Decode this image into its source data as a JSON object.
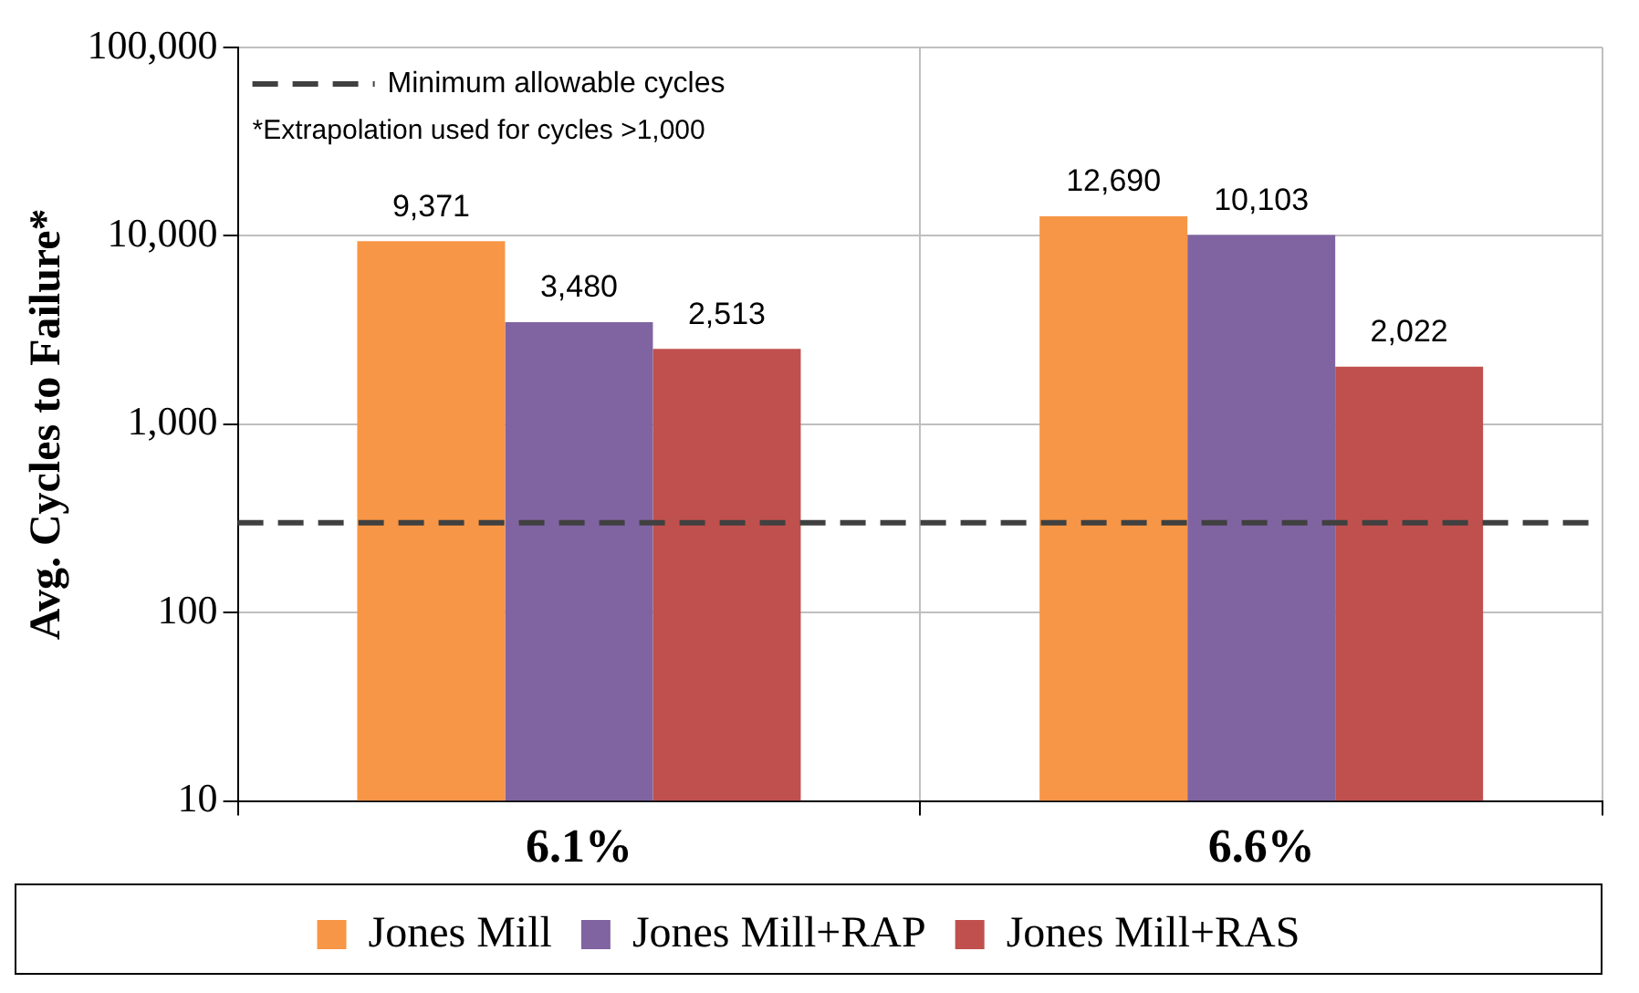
{
  "chart_data": {
    "type": "bar",
    "ylabel": "Avg. Cycles to Failure*",
    "categories": [
      "6.1%",
      "6.6%"
    ],
    "series": [
      {
        "name": "Jones Mill",
        "color": "#f79646",
        "values": [
          9371,
          12690
        ]
      },
      {
        "name": "Jones Mill+RAP",
        "color": "#8064a2",
        "values": [
          3480,
          10103
        ]
      },
      {
        "name": "Jones Mill+RAS",
        "color": "#c0504d",
        "values": [
          2513,
          2022
        ]
      }
    ],
    "log": true,
    "ylim": [
      10,
      100000
    ],
    "yticks": [
      {
        "value": 10,
        "label": "10"
      },
      {
        "value": 100,
        "label": "100"
      },
      {
        "value": 1000,
        "label": "1,000"
      },
      {
        "value": 10000,
        "label": "10,000"
      },
      {
        "value": 100000,
        "label": "100,000"
      }
    ],
    "ref_lines": [
      {
        "axis": "y",
        "value": 300,
        "label": "Minimum allowable cycles",
        "color": "#404040",
        "line_style": "dashed"
      }
    ],
    "annotations": [
      "*Extrapolation used for cycles >1,000"
    ],
    "value_labels": [
      [
        "9,371",
        "12,690"
      ],
      [
        "3,480",
        "10,103"
      ],
      [
        "2,513",
        "2,022"
      ]
    ],
    "grid": true,
    "legend": "bottom"
  }
}
